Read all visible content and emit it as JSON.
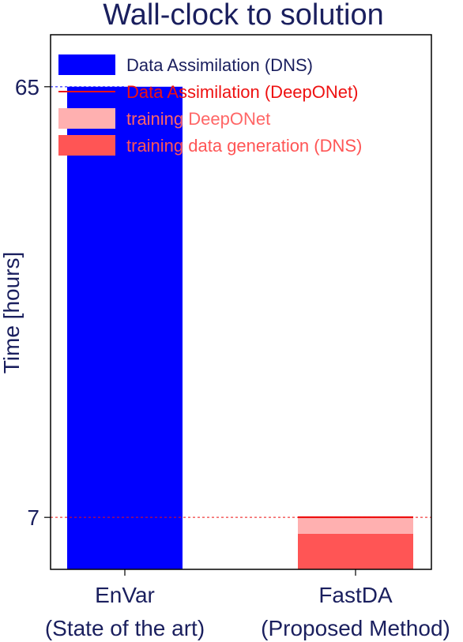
{
  "chart_data": {
    "type": "bar",
    "title": "Wall-clock to solution",
    "ylabel": "Time [hours]",
    "xlabel": "",
    "categories": [
      "EnVar\n(State of the art)",
      "FastDA\n(Proposed Method)"
    ],
    "category_lines": [
      [
        "EnVar",
        "(State of the art)"
      ],
      [
        "FastDA",
        "(Proposed Method)"
      ]
    ],
    "yticks": [
      7,
      65
    ],
    "ytick_labels": [
      "7",
      "65"
    ],
    "ylim": [
      0,
      72
    ],
    "grid": false,
    "legend_position": "top-left",
    "series": [
      {
        "name": "Data Assimilation (DNS)",
        "kind": "bar",
        "color": "#0000ff",
        "values": [
          65,
          0
        ]
      },
      {
        "name": "Data Assimilation (DeepONet)",
        "kind": "line",
        "color": "#ee1111",
        "values": [
          0,
          0.2
        ]
      },
      {
        "name": "training DeepONet",
        "kind": "bar",
        "color": "#ffb0b0",
        "values": [
          0,
          2.0
        ]
      },
      {
        "name": "training data generation (DNS)",
        "kind": "bar",
        "color": "#ff5555",
        "values": [
          0,
          4.8
        ]
      }
    ],
    "reference_lines": [
      {
        "value": 65,
        "color": "#0000ff",
        "style": "dashed"
      },
      {
        "value": 7,
        "color": "#ee1111",
        "style": "dashed"
      }
    ],
    "legend_text_colors": [
      "#1a1f5e",
      "#ee1111",
      "#ff6666",
      "#ff5555"
    ]
  }
}
